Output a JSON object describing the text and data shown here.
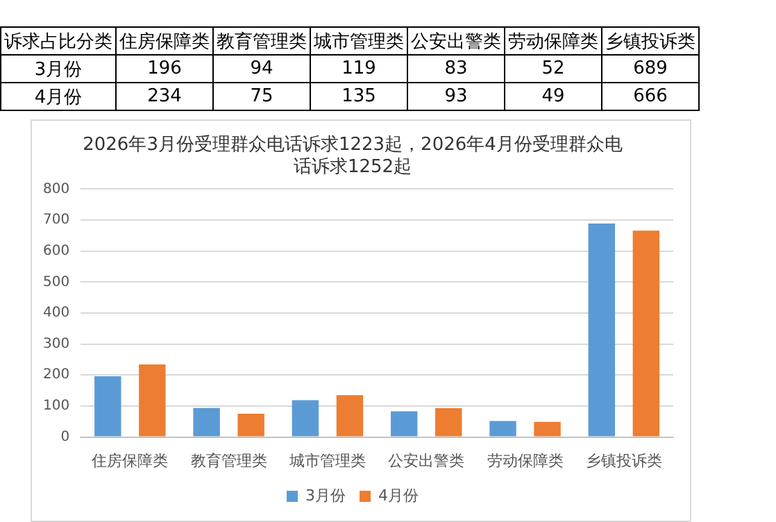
{
  "chart_data": {
    "type": "bar",
    "title": "2026年3月份受理群众电话诉求1223起，2026年4月份受理群众电话诉求1252起",
    "categories": [
      "住房保障类",
      "教育管理类",
      "城市管理类",
      "公安出警类",
      "劳动保障类",
      "乡镇投诉类"
    ],
    "series": [
      {
        "name": "3月份",
        "color": "#5b9bd5",
        "values": [
          196,
          94,
          119,
          83,
          52,
          689
        ]
      },
      {
        "name": "4月份",
        "color": "#ed7d31",
        "values": [
          234,
          75,
          135,
          93,
          49,
          666
        ]
      }
    ],
    "annotations": [
      "诉求占比分类"
    ],
    "data_labels": true,
    "ylim": [
      0,
      800
    ],
    "yticks": [
      0,
      100,
      200,
      300,
      400,
      500,
      600,
      700,
      800
    ],
    "grid": "y",
    "legend": "bottom"
  }
}
